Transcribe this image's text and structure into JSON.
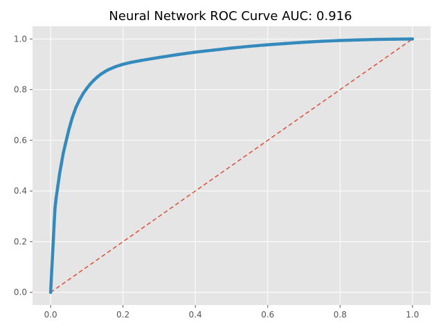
{
  "chart_data": {
    "type": "line",
    "title": "Neural Network ROC Curve  AUC: 0.916",
    "xlabel": "",
    "ylabel": "",
    "xlim": [
      -0.05,
      1.05
    ],
    "ylim": [
      -0.05,
      1.05
    ],
    "xticks": [
      0.0,
      0.2,
      0.4,
      0.6,
      0.8,
      1.0
    ],
    "yticks": [
      0.0,
      0.2,
      0.4,
      0.6,
      0.8,
      1.0
    ],
    "xtick_labels": [
      "0.0",
      "0.2",
      "0.4",
      "0.6",
      "0.8",
      "1.0"
    ],
    "ytick_labels": [
      "0.0",
      "0.2",
      "0.4",
      "0.6",
      "0.8",
      "1.0"
    ],
    "grid": true,
    "background_color": "#e5e5e5",
    "series": [
      {
        "color": "#348abd",
        "style": "solid-with-markers",
        "x": [
          0.0,
          0.005,
          0.008,
          0.01,
          0.012,
          0.015,
          0.02,
          0.025,
          0.03,
          0.035,
          0.04,
          0.045,
          0.05,
          0.055,
          0.06,
          0.065,
          0.07,
          0.075,
          0.08,
          0.09,
          0.1,
          0.11,
          0.12,
          0.13,
          0.14,
          0.15,
          0.16,
          0.18,
          0.2,
          0.22,
          0.25,
          0.3,
          0.35,
          0.4,
          0.45,
          0.5,
          0.55,
          0.6,
          0.65,
          0.7,
          0.75,
          0.8,
          0.85,
          0.9,
          0.95,
          1.0
        ],
        "y": [
          0.0,
          0.14,
          0.22,
          0.28,
          0.33,
          0.37,
          0.42,
          0.47,
          0.51,
          0.55,
          0.58,
          0.61,
          0.64,
          0.665,
          0.69,
          0.71,
          0.73,
          0.745,
          0.76,
          0.785,
          0.805,
          0.823,
          0.838,
          0.851,
          0.862,
          0.871,
          0.879,
          0.891,
          0.9,
          0.907,
          0.915,
          0.927,
          0.938,
          0.948,
          0.956,
          0.964,
          0.971,
          0.977,
          0.982,
          0.987,
          0.991,
          0.994,
          0.996,
          0.998,
          0.999,
          1.0
        ]
      },
      {
        "color": "#e24a33",
        "style": "dashed",
        "x": [
          0.0,
          1.0
        ],
        "y": [
          0.0,
          1.0
        ]
      }
    ]
  }
}
